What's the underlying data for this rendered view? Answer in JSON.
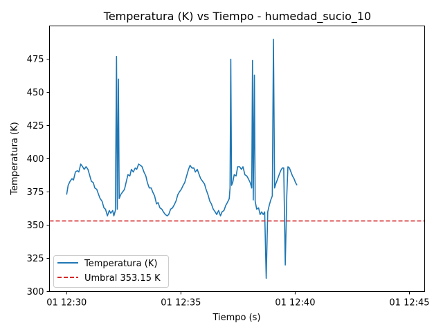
{
  "chart_data": {
    "type": "line",
    "title": "Temperatura (K) vs Tiempo - humedad_sucio_10",
    "xlabel": "Tiempo (s)",
    "ylabel": "Temperatura (K)",
    "xlim": [
      "12:29:15",
      "12:45:40"
    ],
    "ylim": [
      300,
      500
    ],
    "x_ticks": [
      {
        "t": "12:30:00",
        "label": "01 12:30"
      },
      {
        "t": "12:35:00",
        "label": "01 12:35"
      },
      {
        "t": "12:40:00",
        "label": "01 12:40"
      },
      {
        "t": "12:45:00",
        "label": "01 12:45"
      }
    ],
    "y_ticks": [
      300,
      325,
      350,
      375,
      400,
      425,
      450,
      475
    ],
    "grid": false,
    "legend_position": "lower-left",
    "series": [
      {
        "name": "Temperatura (K)",
        "color": "#1f77b4",
        "style": "solid",
        "points": [
          [
            "12:30:00",
            373
          ],
          [
            "12:30:04",
            380
          ],
          [
            "12:30:09",
            383
          ],
          [
            "12:30:14",
            385
          ],
          [
            "12:30:18",
            384
          ],
          [
            "12:30:23",
            390
          ],
          [
            "12:30:28",
            391
          ],
          [
            "12:30:32",
            390
          ],
          [
            "12:30:37",
            396
          ],
          [
            "12:30:42",
            394
          ],
          [
            "12:30:46",
            392
          ],
          [
            "12:30:51",
            394
          ],
          [
            "12:30:56",
            392
          ],
          [
            "12:31:00",
            388
          ],
          [
            "12:31:05",
            383
          ],
          [
            "12:31:10",
            382
          ],
          [
            "12:31:14",
            378
          ],
          [
            "12:31:19",
            377
          ],
          [
            "12:31:24",
            373
          ],
          [
            "12:31:28",
            370
          ],
          [
            "12:31:33",
            368
          ],
          [
            "12:31:38",
            363
          ],
          [
            "12:31:42",
            362
          ],
          [
            "12:31:47",
            357
          ],
          [
            "12:31:52",
            361
          ],
          [
            "12:31:56",
            359
          ],
          [
            "12:32:01",
            361
          ],
          [
            "12:32:04",
            357
          ],
          [
            "12:32:08",
            361
          ],
          [
            "12:32:11",
            477
          ],
          [
            "12:32:13",
            362
          ],
          [
            "12:32:16",
            460
          ],
          [
            "12:32:18",
            370
          ],
          [
            "12:32:22",
            373
          ],
          [
            "12:32:27",
            375
          ],
          [
            "12:32:32",
            377
          ],
          [
            "12:32:36",
            382
          ],
          [
            "12:32:41",
            388
          ],
          [
            "12:32:46",
            387
          ],
          [
            "12:32:50",
            392
          ],
          [
            "12:32:55",
            390
          ],
          [
            "12:33:00",
            393
          ],
          [
            "12:33:04",
            392
          ],
          [
            "12:33:09",
            396
          ],
          [
            "12:33:14",
            395
          ],
          [
            "12:33:18",
            394
          ],
          [
            "12:33:23",
            390
          ],
          [
            "12:33:28",
            387
          ],
          [
            "12:33:32",
            382
          ],
          [
            "12:33:37",
            378
          ],
          [
            "12:33:42",
            378
          ],
          [
            "12:33:46",
            375
          ],
          [
            "12:33:51",
            372
          ],
          [
            "12:33:56",
            366
          ],
          [
            "12:34:00",
            367
          ],
          [
            "12:34:05",
            363
          ],
          [
            "12:34:10",
            362
          ],
          [
            "12:34:14",
            360
          ],
          [
            "12:34:19",
            358
          ],
          [
            "12:34:24",
            357
          ],
          [
            "12:34:28",
            358
          ],
          [
            "12:34:33",
            362
          ],
          [
            "12:34:38",
            363
          ],
          [
            "12:34:42",
            365
          ],
          [
            "12:34:47",
            368
          ],
          [
            "12:34:52",
            373
          ],
          [
            "12:34:56",
            375
          ],
          [
            "12:35:01",
            377
          ],
          [
            "12:35:06",
            380
          ],
          [
            "12:35:10",
            382
          ],
          [
            "12:35:15",
            387
          ],
          [
            "12:35:20",
            392
          ],
          [
            "12:35:24",
            395
          ],
          [
            "12:35:29",
            393
          ],
          [
            "12:35:34",
            393
          ],
          [
            "12:35:38",
            390
          ],
          [
            "12:35:43",
            392
          ],
          [
            "12:35:48",
            388
          ],
          [
            "12:35:52",
            385
          ],
          [
            "12:35:57",
            383
          ],
          [
            "12:36:02",
            381
          ],
          [
            "12:36:06",
            377
          ],
          [
            "12:36:11",
            373
          ],
          [
            "12:36:16",
            368
          ],
          [
            "12:36:20",
            366
          ],
          [
            "12:36:25",
            362
          ],
          [
            "12:36:30",
            360
          ],
          [
            "12:36:34",
            358
          ],
          [
            "12:36:39",
            361
          ],
          [
            "12:36:44",
            357
          ],
          [
            "12:36:48",
            360
          ],
          [
            "12:36:53",
            361
          ],
          [
            "12:36:58",
            365
          ],
          [
            "12:37:02",
            367
          ],
          [
            "12:37:07",
            370
          ],
          [
            "12:37:09",
            378
          ],
          [
            "12:37:11",
            475
          ],
          [
            "12:37:13",
            380
          ],
          [
            "12:37:16",
            382
          ],
          [
            "12:37:20",
            388
          ],
          [
            "12:37:25",
            387
          ],
          [
            "12:37:29",
            394
          ],
          [
            "12:37:34",
            394
          ],
          [
            "12:37:39",
            392
          ],
          [
            "12:37:43",
            394
          ],
          [
            "12:37:48",
            388
          ],
          [
            "12:37:53",
            387
          ],
          [
            "12:37:57",
            385
          ],
          [
            "12:38:02",
            382
          ],
          [
            "12:38:06",
            378
          ],
          [
            "12:38:08",
            474
          ],
          [
            "12:38:10",
            369
          ],
          [
            "12:38:13",
            463
          ],
          [
            "12:38:15",
            368
          ],
          [
            "12:38:19",
            362
          ],
          [
            "12:38:24",
            363
          ],
          [
            "12:38:28",
            358
          ],
          [
            "12:38:32",
            360
          ],
          [
            "12:38:36",
            358
          ],
          [
            "12:38:40",
            360
          ],
          [
            "12:38:44",
            310
          ],
          [
            "12:38:48",
            360
          ],
          [
            "12:38:52",
            365
          ],
          [
            "12:38:56",
            369
          ],
          [
            "12:39:00",
            372
          ],
          [
            "12:39:03",
            490
          ],
          [
            "12:39:06",
            378
          ],
          [
            "12:39:09",
            381
          ],
          [
            "12:39:13",
            384
          ],
          [
            "12:39:18",
            388
          ],
          [
            "12:39:22",
            391
          ],
          [
            "12:39:26",
            393
          ],
          [
            "12:39:30",
            393
          ],
          [
            "12:39:34",
            320
          ],
          [
            "12:39:38",
            372
          ],
          [
            "12:39:41",
            394
          ],
          [
            "12:39:45",
            393
          ],
          [
            "12:39:49",
            390
          ],
          [
            "12:39:53",
            387
          ],
          [
            "12:39:57",
            385
          ],
          [
            "12:40:01",
            382
          ],
          [
            "12:40:05",
            380
          ]
        ]
      },
      {
        "name": "Umbral 353.15 K",
        "color": "#d62728",
        "style": "dashed",
        "y": 353.15
      }
    ]
  }
}
